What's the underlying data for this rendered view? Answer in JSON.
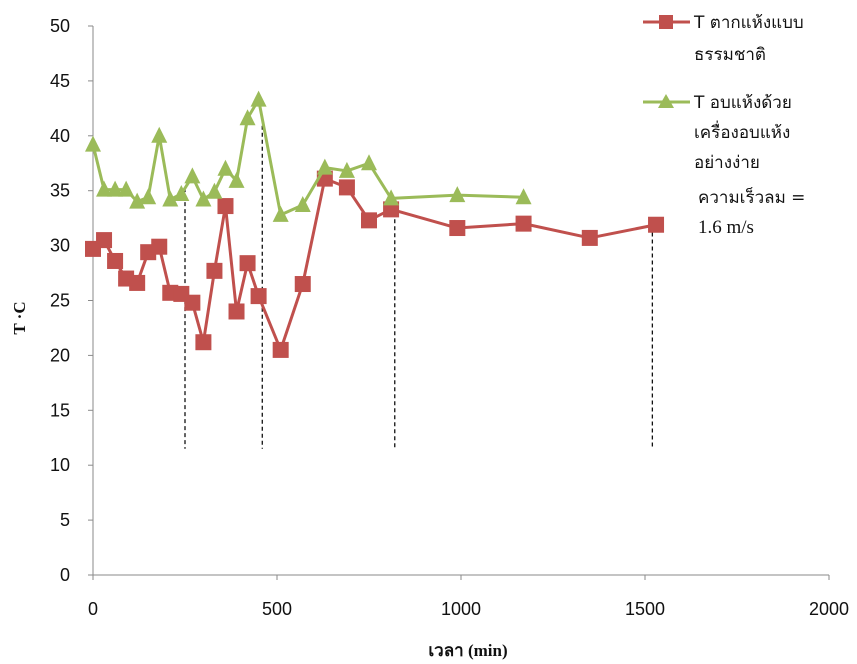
{
  "chart_data": {
    "type": "line",
    "xlabel": "เวลา (min)",
    "ylabel": "T ·C",
    "xlim": [
      0,
      2000
    ],
    "ylim": [
      0,
      50
    ],
    "x_ticks": [
      "0",
      "500",
      "1000",
      "1500",
      "2000"
    ],
    "y_ticks": [
      "0",
      "5",
      "10",
      "15",
      "20",
      "25",
      "30",
      "35",
      "40",
      "45",
      "50"
    ],
    "grid": false,
    "legend_position": "right",
    "series": [
      {
        "name_lines": [
          "T ตากแห้งแบบ",
          "ธรรมชาติ"
        ],
        "color": "#c0504d",
        "marker": "square",
        "x": [
          0,
          30,
          60,
          90,
          120,
          150,
          180,
          210,
          240,
          270,
          300,
          330,
          360,
          390,
          420,
          450,
          510,
          570,
          630,
          690,
          750,
          810,
          990,
          1170,
          1350,
          1530
        ],
        "y": [
          29.7,
          30.5,
          28.6,
          27.0,
          26.6,
          29.4,
          29.9,
          25.7,
          25.6,
          24.8,
          21.2,
          27.7,
          33.6,
          24.0,
          28.4,
          25.4,
          20.5,
          26.5,
          36.1,
          35.3,
          32.3,
          33.3,
          31.6,
          32.0,
          30.7,
          31.9
        ]
      },
      {
        "name_lines": [
          "T อบแห้งด้วย",
          "เครื่องอบแห้ง",
          "อย่างง่าย"
        ],
        "color": "#9bbb59",
        "marker": "triangle",
        "x": [
          0,
          30,
          60,
          90,
          120,
          150,
          180,
          210,
          240,
          270,
          300,
          330,
          360,
          390,
          420,
          450,
          510,
          570,
          630,
          690,
          750,
          810,
          990,
          1170
        ],
        "y": [
          39.2,
          35.1,
          35.1,
          35.1,
          34.0,
          34.4,
          40.0,
          34.2,
          34.7,
          36.3,
          34.2,
          34.9,
          37.0,
          35.9,
          41.6,
          43.3,
          32.8,
          33.7,
          37.1,
          36.8,
          37.5,
          34.3,
          34.6,
          34.4
        ]
      }
    ],
    "vertical_markers_x": [
      250,
      460,
      820,
      1520
    ],
    "annotation": {
      "line1": "ความเร็วลม  =",
      "line2": "1.6 m/s"
    }
  }
}
